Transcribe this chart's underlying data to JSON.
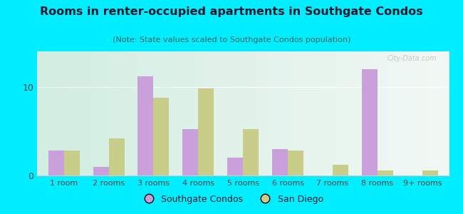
{
  "title": "Rooms in renter-occupied apartments in Southgate Condos",
  "subtitle": "(Note: State values scaled to Southgate Condos population)",
  "categories": [
    "1 room",
    "2 rooms",
    "3 rooms",
    "4 rooms",
    "5 rooms",
    "6 rooms",
    "7 rooms",
    "8 rooms",
    "9+ rooms"
  ],
  "southgate": [
    2.8,
    1.0,
    11.2,
    5.2,
    2.0,
    3.0,
    0.0,
    12.0,
    0.0
  ],
  "san_diego": [
    2.8,
    4.2,
    8.8,
    9.8,
    5.2,
    2.8,
    1.2,
    0.6,
    0.6
  ],
  "southgate_color": "#c9a0dc",
  "san_diego_color": "#c8cd8a",
  "background_outer": "#00eeff",
  "ylim": [
    0,
    14
  ],
  "yticks": [
    0,
    10
  ],
  "bar_width": 0.35,
  "figsize": [
    6.5,
    3.0
  ],
  "dpi": 100,
  "title_color": "#1a1a2e",
  "subtitle_color": "#2a6060",
  "tick_color": "#444444"
}
